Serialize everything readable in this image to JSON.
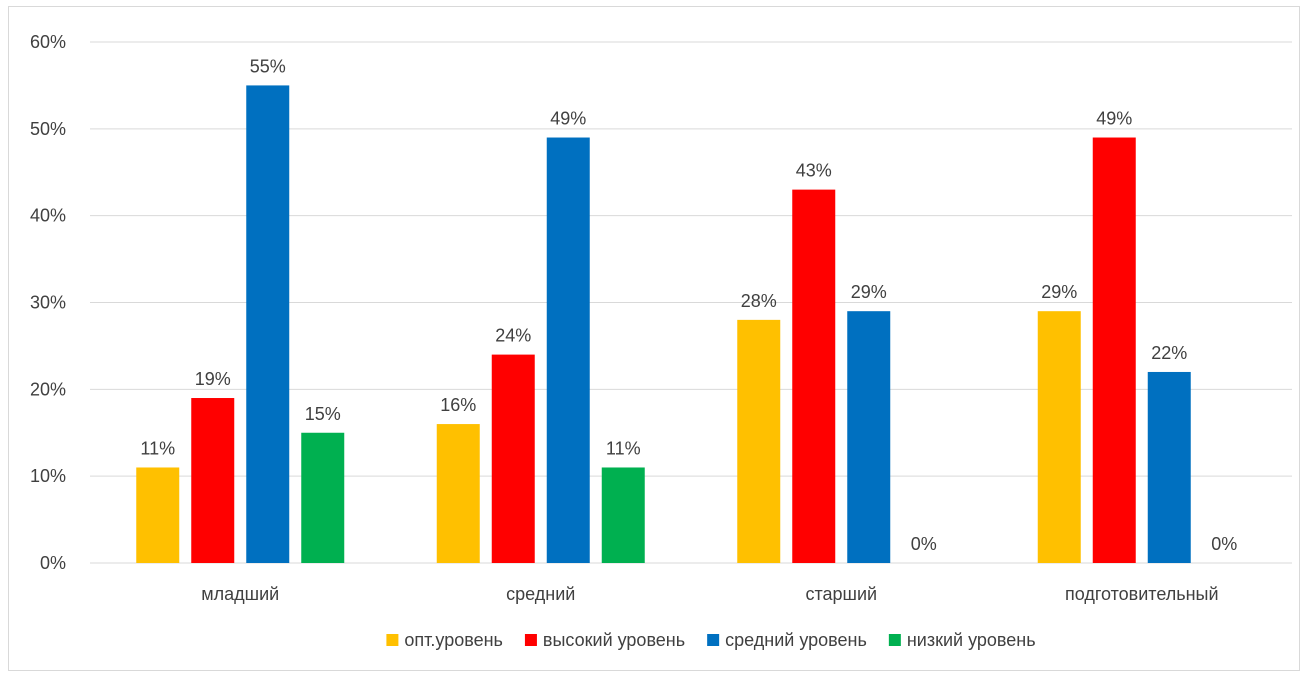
{
  "chart_data": {
    "type": "bar",
    "categories": [
      "младший",
      "средний",
      "старший",
      "подготовительный"
    ],
    "series": [
      {
        "name": "опт.уровень",
        "values": [
          11,
          16,
          28,
          29
        ],
        "color": "#FFC000"
      },
      {
        "name": "высокий уровень",
        "values": [
          19,
          24,
          43,
          49
        ],
        "color": "#FF0000"
      },
      {
        "name": "средний уровень",
        "values": [
          55,
          49,
          29,
          22
        ],
        "color": "#0070C0"
      },
      {
        "name": "низкий уровень",
        "values": [
          15,
          11,
          0,
          0
        ],
        "color": "#00B050"
      }
    ],
    "ylim": [
      0,
      60
    ],
    "yticks": [
      0,
      10,
      20,
      30,
      40,
      50,
      60
    ],
    "value_format": "percent",
    "grid": true,
    "legend_position": "bottom",
    "title": "",
    "xlabel": "",
    "ylabel": ""
  }
}
